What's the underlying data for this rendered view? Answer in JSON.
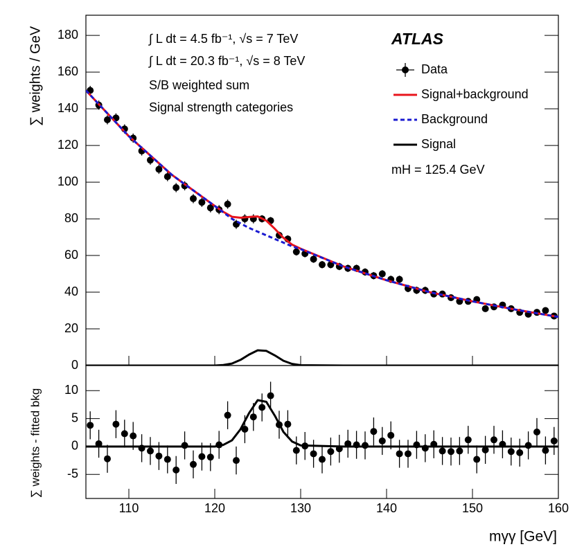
{
  "chart_data": [
    {
      "type": "errorbar",
      "ylabel": "∑ weights / GeV",
      "annotations": [
        "∫ L dt = 4.5 fb⁻¹, √s = 7 TeV",
        "∫ L dt = 20.3 fb⁻¹, √s = 8 TeV",
        "S/B weighted sum",
        "Signal strength categories"
      ],
      "experiment": "ATLAS",
      "mass_label": "mH = 125.4 GeV",
      "legend": "upper right",
      "xlim": [
        105,
        160
      ],
      "ylim": [
        0,
        191
      ],
      "yticks": [
        0,
        20,
        40,
        60,
        80,
        100,
        120,
        140,
        160,
        180
      ],
      "series": [
        {
          "name": "Data",
          "color": "#000000",
          "style": "points",
          "x": [
            105.5,
            106.5,
            107.5,
            108.5,
            109.5,
            110.5,
            111.5,
            112.5,
            113.5,
            114.5,
            115.5,
            116.5,
            117.5,
            118.5,
            119.5,
            120.5,
            121.5,
            122.5,
            123.5,
            124.5,
            125.5,
            126.5,
            127.5,
            128.5,
            129.5,
            130.5,
            131.5,
            132.5,
            133.5,
            134.5,
            135.5,
            136.5,
            137.5,
            138.5,
            139.5,
            140.5,
            141.5,
            142.5,
            143.5,
            144.5,
            145.5,
            146.5,
            147.5,
            148.5,
            149.5,
            150.5,
            151.5,
            152.5,
            153.5,
            154.5,
            155.5,
            156.5,
            157.5,
            158.5,
            159.5
          ],
          "values": [
            150,
            142,
            134,
            135,
            129,
            124,
            117,
            112,
            107,
            103,
            97,
            98,
            91,
            89,
            86,
            85,
            88,
            77,
            80,
            80,
            80,
            79,
            71,
            69,
            62,
            61,
            58,
            55,
            55,
            54,
            53,
            53,
            51,
            49,
            50,
            47,
            47,
            42,
            41,
            41,
            39,
            39,
            37,
            35,
            35,
            36,
            31,
            32,
            33,
            31,
            29,
            28,
            29,
            30,
            27
          ],
          "errors": [
            2.5,
            2.5,
            2.5,
            2.5,
            2.5,
            2.5,
            2.5,
            2.5,
            2.5,
            2.5,
            2.5,
            2.5,
            2.5,
            2.5,
            2.5,
            2.5,
            2.5,
            2.5,
            2.5,
            2.5,
            2,
            2,
            2,
            2,
            2,
            2,
            2,
            2,
            2,
            2,
            2,
            2,
            2,
            2,
            2,
            2,
            2,
            2,
            2,
            2,
            1.5,
            1.5,
            1.5,
            1.5,
            1.5,
            1.5,
            1.5,
            1.5,
            1.5,
            1.5,
            1.5,
            1.5,
            1.5,
            1.5,
            1.5
          ]
        },
        {
          "name": "Signal+background",
          "color": "#e8141c",
          "style": "solid",
          "x": [
            105,
            110,
            115,
            120,
            121,
            122,
            123,
            124,
            125,
            126,
            127,
            128,
            129,
            130,
            135,
            140,
            145,
            150,
            155,
            160
          ],
          "values": [
            150,
            125,
            104,
            87,
            83.8,
            81.1,
            80.6,
            81,
            81.3,
            79,
            74.5,
            69.6,
            65.9,
            63.7,
            54,
            46.5,
            40,
            35,
            30.5,
            26.5
          ]
        },
        {
          "name": "Background",
          "color": "#1a1ad0",
          "style": "dashed",
          "x": [
            105,
            110,
            115,
            120,
            121,
            122,
            123,
            124,
            125,
            126,
            127,
            128,
            129,
            130,
            135,
            140,
            145,
            150,
            155,
            160
          ],
          "values": [
            150,
            125,
            104,
            87,
            83.5,
            80,
            77.5,
            75,
            73,
            71,
            69,
            67,
            65,
            63.5,
            54,
            46.5,
            40,
            35,
            30.5,
            26.5
          ]
        },
        {
          "name": "Signal",
          "color": "#000000",
          "style": "solid",
          "x": [
            105,
            110,
            115,
            120,
            121,
            122,
            123,
            124,
            125,
            126,
            127,
            128,
            129,
            130,
            135,
            140,
            145,
            150,
            155,
            160
          ],
          "values": [
            0,
            0,
            0,
            0,
            0.3,
            1.1,
            3.1,
            6.0,
            8.3,
            8.0,
            5.5,
            2.6,
            0.9,
            0.2,
            0,
            0,
            0,
            0,
            0,
            0
          ]
        }
      ]
    },
    {
      "type": "errorbar",
      "ylabel": "∑ weights - fitted bkg",
      "xlabel": "mγγ [GeV]",
      "xlim": [
        105,
        160
      ],
      "xticks": [
        110,
        120,
        130,
        140,
        150,
        160
      ],
      "ylim": [
        -9.3,
        14.5
      ],
      "yticks": [
        -5,
        0,
        5,
        10
      ],
      "series": [
        {
          "color": "#000000",
          "style": "points",
          "x": [
            105.5,
            106.5,
            107.5,
            108.5,
            109.5,
            110.5,
            111.5,
            112.5,
            113.5,
            114.5,
            115.5,
            116.5,
            117.5,
            118.5,
            119.5,
            120.5,
            121.5,
            122.5,
            123.5,
            124.5,
            125.5,
            126.5,
            127.5,
            128.5,
            129.5,
            130.5,
            131.5,
            132.5,
            133.5,
            134.5,
            135.5,
            136.5,
            137.5,
            138.5,
            139.5,
            140.5,
            141.5,
            142.5,
            143.5,
            144.5,
            145.5,
            146.5,
            147.5,
            148.5,
            149.5,
            150.5,
            151.5,
            152.5,
            153.5,
            154.5,
            155.5,
            156.5,
            157.5,
            158.5,
            159.5
          ],
          "values": [
            3.8,
            0.5,
            -2.2,
            4,
            2.3,
            1.9,
            -0.3,
            -0.8,
            -1.7,
            -2.3,
            -4.2,
            0.2,
            -3.2,
            -1.8,
            -1.9,
            0.3,
            5.6,
            -2.5,
            3.1,
            5.3,
            7.0,
            9.1,
            3.9,
            4.0,
            -0.7,
            0.1,
            -1.3,
            -2.3,
            -0.9,
            -0.4,
            0.5,
            0.3,
            0.2,
            2.7,
            1.0,
            2.0,
            -1.3,
            -1.3,
            0.3,
            -0.3,
            0.4,
            -0.8,
            -0.9,
            -0.8,
            1.2,
            -2.3,
            -0.6,
            1.2,
            0.4,
            -0.9,
            -1.1,
            0.2,
            2.6,
            -0.7,
            1.0
          ],
          "errors": [
            2.5,
            2.5,
            2.5,
            2.5,
            2.5,
            2.5,
            2.5,
            2.5,
            2.5,
            2.5,
            2.5,
            2.5,
            2.5,
            2.5,
            2.5,
            2.5,
            2.5,
            2.5,
            2.5,
            2.5,
            2.5,
            2.5,
            2.5,
            2.5,
            2.5,
            2.5,
            2.5,
            2.5,
            2.5,
            2.5,
            2.5,
            2.5,
            2.5,
            2.5,
            2.5,
            2.5,
            2.5,
            2.5,
            2.5,
            2.5,
            2.5,
            2.5,
            2.5,
            2.5,
            2.5,
            2.5,
            2.5,
            2.5,
            2.5,
            2.5,
            2.5,
            2.5,
            2.5,
            2.5,
            2.5
          ]
        },
        {
          "color": "#000000",
          "style": "solid",
          "x": [
            105,
            110,
            115,
            120,
            121,
            122,
            123,
            124,
            125,
            126,
            127,
            128,
            129,
            130,
            135,
            140,
            145,
            150,
            155,
            160
          ],
          "values": [
            0,
            0,
            0,
            0,
            0.3,
            1.1,
            3.1,
            6.0,
            8.3,
            8.0,
            5.5,
            2.6,
            0.9,
            0.2,
            0,
            0,
            0,
            0,
            0,
            0
          ]
        }
      ]
    }
  ]
}
